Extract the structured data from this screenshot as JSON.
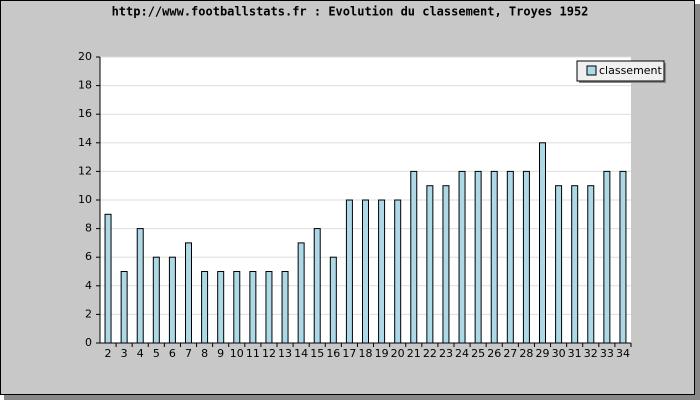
{
  "chart_data": {
    "type": "bar",
    "title": "http://www.footballstats.fr : Evolution du classement, Troyes 1952",
    "categories": [
      "2",
      "3",
      "4",
      "5",
      "6",
      "7",
      "8",
      "9",
      "10",
      "11",
      "12",
      "13",
      "14",
      "15",
      "16",
      "17",
      "18",
      "19",
      "20",
      "21",
      "22",
      "23",
      "24",
      "25",
      "26",
      "27",
      "28",
      "29",
      "30",
      "31",
      "32",
      "33",
      "34"
    ],
    "series": [
      {
        "name": "classement",
        "color": "#add8e6",
        "values": [
          9,
          5,
          8,
          6,
          6,
          7,
          5,
          5,
          5,
          5,
          5,
          5,
          7,
          8,
          6,
          10,
          10,
          10,
          10,
          12,
          11,
          11,
          12,
          12,
          12,
          12,
          12,
          14,
          11,
          11,
          11,
          12,
          12
        ]
      }
    ],
    "ylim": [
      0,
      20
    ],
    "yticks": [
      0,
      2,
      4,
      6,
      8,
      10,
      12,
      14,
      16,
      18,
      20
    ],
    "grid": true,
    "legend": "top-right"
  }
}
